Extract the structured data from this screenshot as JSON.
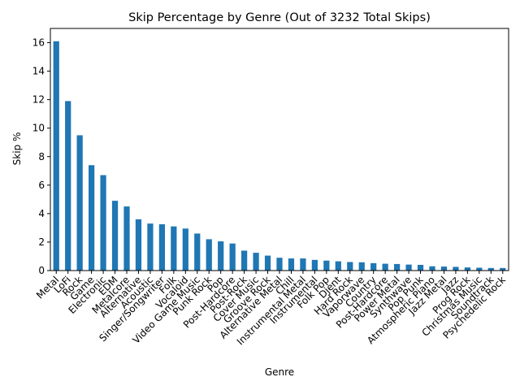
{
  "chart_data": {
    "type": "bar",
    "title": "Skip Percentage by Genre (Out of 3232 Total Skips)",
    "xlabel": "Genre",
    "ylabel": "Skip %",
    "ylim": [
      0,
      17
    ],
    "yticks": [
      0,
      2,
      4,
      6,
      8,
      10,
      12,
      14,
      16
    ],
    "grid": false,
    "legend": "none",
    "bar_color": "#1f77b4",
    "categories": [
      "Metal",
      "LoFi",
      "Rock",
      "Game",
      "Electronic",
      "EDM",
      "Metalcore",
      "Alternative",
      "Acoustic",
      "Singer/Songwriter",
      "Folk",
      "Vocaloid",
      "Video Game Music",
      "Punk Rock",
      "Pop",
      "Post-Hardcore",
      "Post-Rock",
      "Cover Music",
      "Groove Rock",
      "Alternative Metal",
      "Chill",
      "Instrumental Metal",
      "Instrumental",
      "Folk Pop",
      "Djent",
      "Hard Rock",
      "Vaporwave",
      "Country",
      "Post-Hardcore",
      "Power Metal",
      "Synthwave",
      "Pop Punk",
      "Atmospheric Piano",
      "Jazz Metal",
      "Jazz",
      "Prog Rock",
      "Christmas Music",
      "Soundtrack",
      "Psychedelic Rock"
    ],
    "values": [
      16.1,
      11.9,
      9.5,
      7.4,
      6.7,
      4.9,
      4.5,
      3.6,
      3.3,
      3.25,
      3.1,
      2.95,
      2.6,
      2.2,
      2.05,
      1.9,
      1.4,
      1.25,
      1.05,
      0.9,
      0.85,
      0.85,
      0.75,
      0.7,
      0.65,
      0.6,
      0.58,
      0.52,
      0.48,
      0.46,
      0.42,
      0.4,
      0.3,
      0.28,
      0.26,
      0.22,
      0.2,
      0.18,
      0.18
    ]
  }
}
